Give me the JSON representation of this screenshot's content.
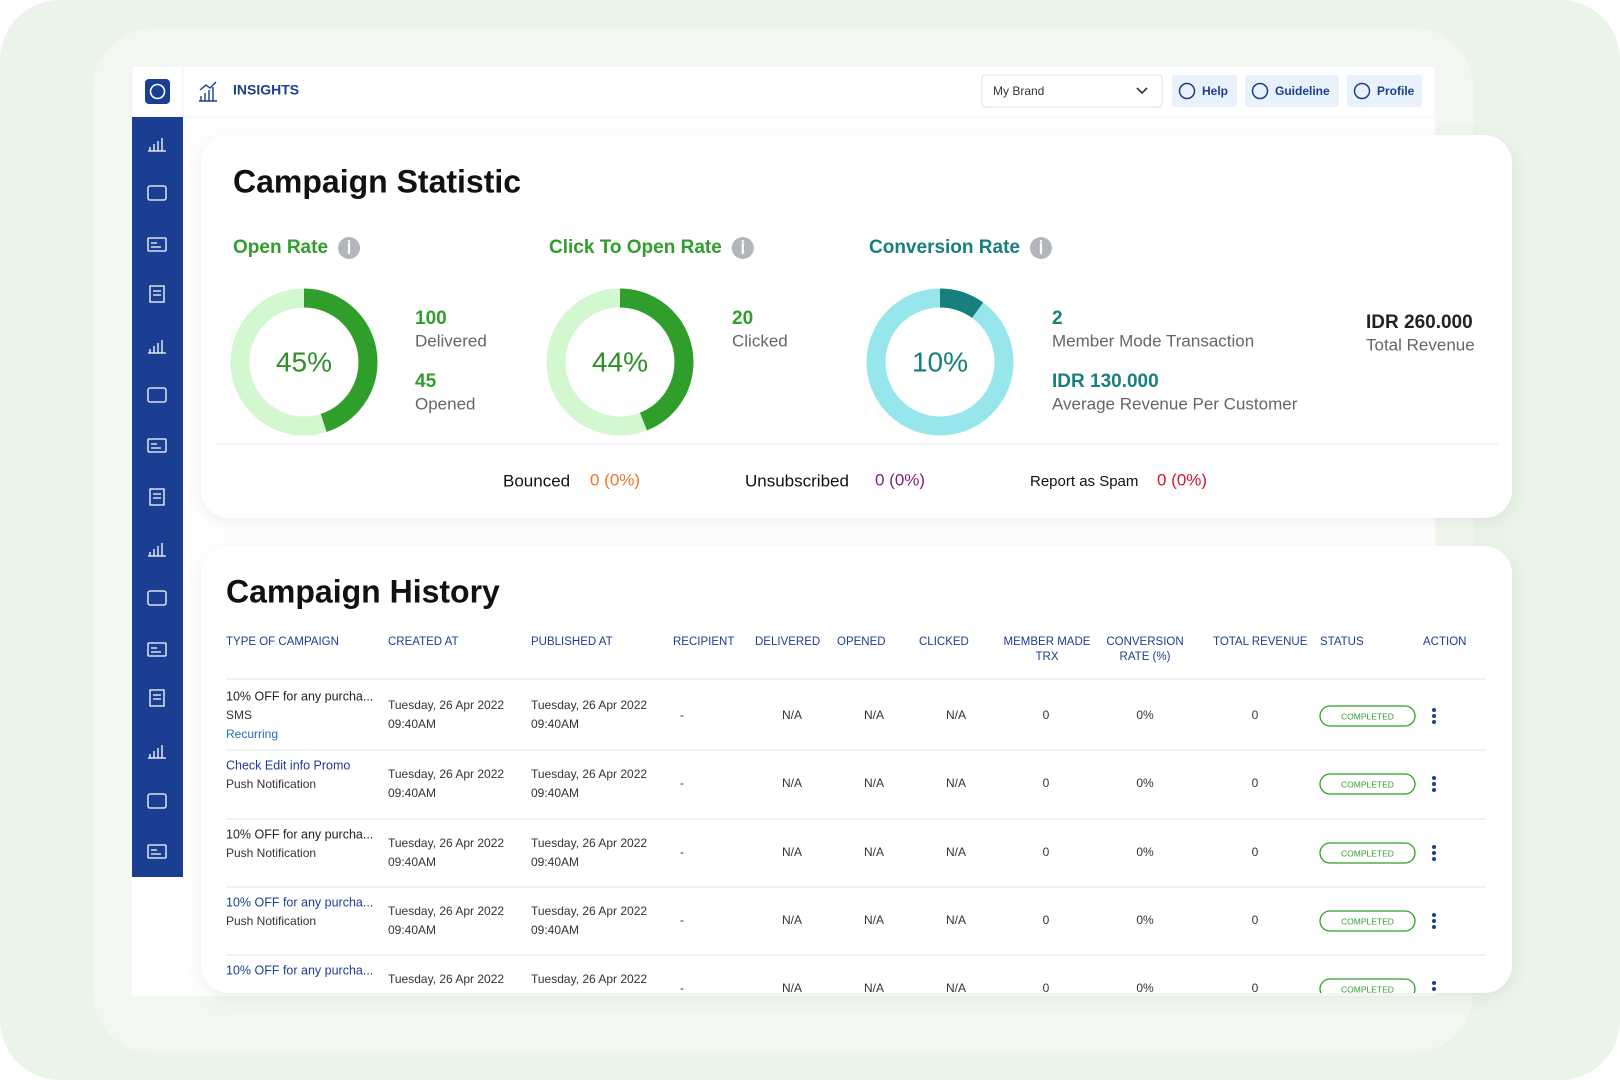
{
  "header": {
    "section": "INSIGHTS",
    "brand": "My Brand",
    "buttons": [
      "Help",
      "Guideline",
      "Profile"
    ]
  },
  "stats": {
    "title": "Campaign Statistic",
    "metrics": [
      {
        "name": "Open Rate",
        "rate": {
          "value": 45,
          "label": "45%"
        },
        "colors": [
          "#d3f7ce",
          "#2f9e2b"
        ],
        "figures": [
          {
            "value": "100",
            "label": "Delivered"
          },
          {
            "value": "45",
            "label": "Opened"
          }
        ]
      },
      {
        "name": "Click To Open Rate",
        "rate": {
          "value": 44,
          "label": "44%"
        },
        "colors": [
          "#d3f7ce",
          "#2f9e2b"
        ],
        "figures": [
          {
            "value": "20",
            "label": "Clicked"
          }
        ]
      },
      {
        "name": "Conversion Rate",
        "rate": {
          "value": 10,
          "label": "10%"
        },
        "colors": [
          "#96e6ec",
          "#177f7c"
        ],
        "figures": [
          {
            "value": "2",
            "label": "Member Mode Transaction"
          },
          {
            "value": "IDR 130.000",
            "label": "Average Revenue Per Customer"
          }
        ],
        "total": {
          "value": "IDR 260.000",
          "label": "Total Revenue"
        }
      }
    ],
    "issues": [
      {
        "label": "Bounced",
        "value": "0 (0%)",
        "color": "#e8772a"
      },
      {
        "label": "Unsubscribed",
        "value": "0 (0%)",
        "color": "#7a1f7b"
      },
      {
        "label": "Report as Spam",
        "value": "0 (0%)",
        "color": "#d3132f"
      }
    ]
  },
  "history": {
    "title": "Campaign History",
    "columns": [
      "TYPE OF CAMPAIGN",
      "CREATED AT",
      "PUBLISHED AT",
      "RECIPIENT",
      "DELIVERED",
      "OPENED",
      "CLICKED",
      [
        "MEMBER MADE",
        "TRX"
      ],
      [
        "CONVERSION",
        "RATE (%)"
      ],
      "TOTAL REVENUE",
      "STATUS",
      "ACTION"
    ],
    "rows": [
      {
        "type": "10% OFF for any purcha...",
        "type_color": "#222222",
        "channel": "SMS",
        "tag": "Recurring",
        "created": [
          "Tuesday, 26 Apr 2022",
          "09:40AM"
        ],
        "published": [
          "Tuesday, 26 Apr 2022",
          "09:40AM"
        ],
        "recipient": "-",
        "delivered": "N/A",
        "opened": "N/A",
        "clicked": "N/A",
        "member_trx": "0",
        "conversion": "0%",
        "revenue": "0",
        "status": "COMPLETED"
      },
      {
        "type": "Check Edit info Promo",
        "type_color": "#1a3e91",
        "channel": "Push Notification",
        "created": [
          "Tuesday, 26 Apr 2022",
          "09:40AM"
        ],
        "published": [
          "Tuesday, 26 Apr 2022",
          "09:40AM"
        ],
        "recipient": "-",
        "delivered": "N/A",
        "opened": "N/A",
        "clicked": "N/A",
        "member_trx": "0",
        "conversion": "0%",
        "revenue": "0",
        "status": "COMPLETED"
      },
      {
        "type": "10% OFF for any purcha...",
        "type_color": "#222222",
        "channel": "Push Notification",
        "created": [
          "Tuesday, 26 Apr 2022",
          "09:40AM"
        ],
        "published": [
          "Tuesday, 26 Apr 2022",
          "09:40AM"
        ],
        "recipient": "-",
        "delivered": "N/A",
        "opened": "N/A",
        "clicked": "N/A",
        "member_trx": "0",
        "conversion": "0%",
        "revenue": "0",
        "status": "COMPLETED"
      },
      {
        "type": "10% OFF for any purcha...",
        "type_color": "#1a3e91",
        "channel": "Push Notification",
        "created": [
          "Tuesday, 26 Apr 2022",
          "09:40AM"
        ],
        "published": [
          "Tuesday, 26 Apr 2022",
          "09:40AM"
        ],
        "recipient": "-",
        "delivered": "N/A",
        "opened": "N/A",
        "clicked": "N/A",
        "member_trx": "0",
        "conversion": "0%",
        "revenue": "0",
        "status": "COMPLETED"
      },
      {
        "type": "10% OFF for any purcha...",
        "type_color": "#1a3e91",
        "created": [
          "Tuesday, 26 Apr 2022"
        ],
        "published": [
          "Tuesday, 26 Apr 2022"
        ],
        "recipient": "-",
        "delivered": "N/A",
        "opened": "N/A",
        "clicked": "N/A",
        "member_trx": "0",
        "conversion": "0%",
        "revenue": "0",
        "status": "COMPLETED"
      }
    ]
  }
}
